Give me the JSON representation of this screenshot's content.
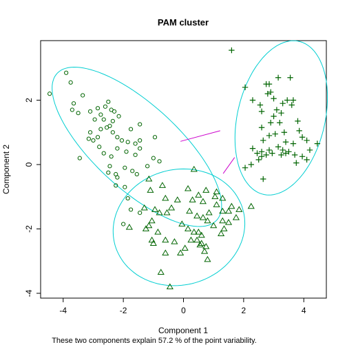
{
  "chart_data": {
    "type": "scatter",
    "title": "PAM cluster",
    "xlabel": "Component 1",
    "ylabel": "Component 2",
    "caption": "These two components explain 57.2 % of the point variability.",
    "xlim": [
      -4.75,
      4.75
    ],
    "ylim": [
      -4.15,
      3.85
    ],
    "x_ticks": [
      -4,
      -2,
      0,
      2,
      4
    ],
    "y_ticks": [
      -4,
      -2,
      0,
      2
    ],
    "grid": false,
    "legend": "none",
    "colors": {
      "points": "#006400",
      "ellipses": "#00CED1",
      "links": "#CC00CC",
      "axes": "#000000"
    },
    "series": [
      {
        "marker": "circle",
        "points": [
          [
            -3.9,
            2.85
          ],
          [
            -4.45,
            2.2
          ],
          [
            -3.75,
            2.55
          ],
          [
            -3.35,
            2.15
          ],
          [
            -3.65,
            1.9
          ],
          [
            -3.7,
            1.7
          ],
          [
            -3.5,
            1.6
          ],
          [
            -3.1,
            1.65
          ],
          [
            -2.85,
            1.75
          ],
          [
            -2.75,
            1.55
          ],
          [
            -2.6,
            1.8
          ],
          [
            -2.5,
            1.95
          ],
          [
            -2.4,
            1.7
          ],
          [
            -2.3,
            1.65
          ],
          [
            -2.65,
            1.4
          ],
          [
            -2.95,
            1.4
          ],
          [
            -2.75,
            1.1
          ],
          [
            -3.15,
            0.8
          ],
          [
            -3.0,
            0.75
          ],
          [
            -2.85,
            0.85
          ],
          [
            -2.45,
            1.2
          ],
          [
            -2.35,
            1.0
          ],
          [
            -2.2,
            0.85
          ],
          [
            -2.05,
            0.75
          ],
          [
            -1.85,
            0.7
          ],
          [
            -1.6,
            0.65
          ],
          [
            -1.45,
            0.75
          ],
          [
            -1.45,
            0.5
          ],
          [
            -1.6,
            0.3
          ],
          [
            -1.9,
            0.4
          ],
          [
            -2.2,
            0.5
          ],
          [
            -2.4,
            0.25
          ],
          [
            -2.65,
            0.35
          ],
          [
            -2.8,
            0.55
          ],
          [
            -3.45,
            0.2
          ],
          [
            -2.45,
            -0.05
          ],
          [
            -2.5,
            -0.25
          ],
          [
            -2.25,
            -0.3
          ],
          [
            -1.95,
            -0.1
          ],
          [
            -1.7,
            -0.2
          ],
          [
            -1.2,
            -0.05
          ],
          [
            -1.0,
            0.2
          ],
          [
            -0.8,
            0.1
          ],
          [
            -0.95,
            0.85
          ],
          [
            -1.45,
            1.25
          ],
          [
            -1.75,
            1.1
          ],
          [
            -2.15,
            1.5
          ],
          [
            -2.35,
            1.35
          ],
          [
            -2.55,
            1.15
          ],
          [
            -3.1,
            1.0
          ],
          [
            -1.55,
            -0.3
          ],
          [
            -2.2,
            -0.4
          ],
          [
            -2.25,
            -0.65
          ],
          [
            -1.95,
            -0.7
          ],
          [
            -1.85,
            -1.05
          ],
          [
            -1.75,
            -1.4
          ],
          [
            -1.45,
            -1.5
          ],
          [
            -2.0,
            -1.85
          ]
        ]
      },
      {
        "marker": "triangle",
        "points": [
          [
            0.75,
            -0.8
          ],
          [
            1.05,
            -1.0
          ],
          [
            1.3,
            -1.05
          ],
          [
            1.1,
            -1.25
          ],
          [
            1.3,
            -1.45
          ],
          [
            1.5,
            -1.45
          ],
          [
            1.6,
            -1.3
          ],
          [
            1.85,
            -1.4
          ],
          [
            2.25,
            -1.3
          ],
          [
            1.75,
            -1.65
          ],
          [
            1.5,
            -1.8
          ],
          [
            1.35,
            -2.0
          ],
          [
            1.25,
            -2.15
          ],
          [
            1.0,
            -1.9
          ],
          [
            0.8,
            -1.75
          ],
          [
            0.65,
            -1.65
          ],
          [
            0.45,
            -1.6
          ],
          [
            0.2,
            -1.45
          ],
          [
            -0.2,
            -1.1
          ],
          [
            -0.6,
            -1.05
          ],
          [
            -0.4,
            -1.35
          ],
          [
            -0.55,
            -1.5
          ],
          [
            -0.8,
            -1.5
          ],
          [
            -0.95,
            -1.4
          ],
          [
            -1.3,
            -1.35
          ],
          [
            -1.05,
            -1.75
          ],
          [
            -1.15,
            -1.9
          ],
          [
            -1.25,
            -2.0
          ],
          [
            -1.05,
            -2.35
          ],
          [
            -0.85,
            -2.1
          ],
          [
            -0.6,
            -2.35
          ],
          [
            -0.3,
            -2.4
          ],
          [
            -0.05,
            -1.85
          ],
          [
            0.15,
            -2.0
          ],
          [
            0.35,
            -2.1
          ],
          [
            0.5,
            -2.1
          ],
          [
            0.6,
            -2.2
          ],
          [
            0.45,
            -2.35
          ],
          [
            0.55,
            -2.5
          ],
          [
            0.7,
            -2.7
          ],
          [
            0.8,
            -2.95
          ],
          [
            0.6,
            -2.45
          ],
          [
            0.25,
            -2.35
          ],
          [
            -0.6,
            -2.75
          ],
          [
            -1.8,
            -1.95
          ],
          [
            -1.1,
            -0.8
          ],
          [
            -1.15,
            -0.45
          ],
          [
            -0.7,
            -0.65
          ],
          [
            0.15,
            -0.75
          ],
          [
            0.35,
            -0.15
          ],
          [
            1.1,
            -0.85
          ],
          [
            0.85,
            -1.5
          ],
          [
            1.3,
            -1.75
          ],
          [
            0.05,
            -2.6
          ],
          [
            -0.1,
            -2.75
          ],
          [
            -0.75,
            -3.35
          ],
          [
            -0.45,
            -3.8
          ],
          [
            0.75,
            -2.55
          ],
          [
            0.65,
            -1.15
          ],
          [
            0.5,
            -0.95
          ],
          [
            0.3,
            -1.1
          ],
          [
            -1.0,
            -2.45
          ]
        ]
      },
      {
        "marker": "plus",
        "points": [
          [
            1.6,
            3.55
          ],
          [
            2.05,
            2.4
          ],
          [
            2.3,
            2.0
          ],
          [
            2.55,
            1.85
          ],
          [
            2.6,
            1.65
          ],
          [
            2.75,
            2.5
          ],
          [
            2.85,
            2.5
          ],
          [
            2.9,
            2.25
          ],
          [
            3.0,
            2.05
          ],
          [
            3.1,
            1.7
          ],
          [
            3.25,
            1.6
          ],
          [
            3.45,
            2.0
          ],
          [
            3.55,
            2.7
          ],
          [
            3.65,
            2.0
          ],
          [
            3.15,
            2.7
          ],
          [
            2.8,
            2.2
          ],
          [
            3.0,
            1.5
          ],
          [
            3.3,
            1.9
          ],
          [
            2.6,
            1.15
          ],
          [
            2.65,
            0.75
          ],
          [
            2.3,
            0.5
          ],
          [
            2.45,
            0.35
          ],
          [
            2.6,
            0.4
          ],
          [
            2.85,
            0.9
          ],
          [
            3.05,
            0.95
          ],
          [
            3.2,
            1.3
          ],
          [
            3.35,
            1.0
          ],
          [
            3.4,
            0.7
          ],
          [
            3.65,
            0.65
          ],
          [
            3.85,
            1.05
          ],
          [
            3.8,
            1.35
          ],
          [
            3.95,
            0.85
          ],
          [
            4.1,
            0.75
          ],
          [
            4.45,
            0.65
          ],
          [
            4.2,
            0.45
          ],
          [
            4.1,
            0.15
          ],
          [
            3.95,
            0.25
          ],
          [
            3.75,
            0.05
          ],
          [
            3.5,
            0.4
          ],
          [
            3.3,
            0.45
          ],
          [
            3.15,
            0.55
          ],
          [
            2.85,
            0.45
          ],
          [
            2.95,
            0.35
          ],
          [
            2.75,
            0.3
          ],
          [
            2.6,
            0.25
          ],
          [
            2.5,
            0.15
          ],
          [
            2.25,
            0.0
          ],
          [
            2.05,
            -0.1
          ],
          [
            2.65,
            -0.45
          ],
          [
            3.4,
            0.35
          ],
          [
            2.9,
            1.3
          ],
          [
            3.6,
            1.85
          ],
          [
            3.25,
            0.3
          ],
          [
            3.7,
            0.3
          ]
        ]
      }
    ],
    "ellipses": [
      {
        "center": [
          -1.55,
          0.55
        ],
        "semi_axes": [
          3.5,
          1.35
        ],
        "angle_deg": -40
      },
      {
        "center": [
          -0.15,
          -1.95
        ],
        "semi_axes": [
          2.2,
          1.8
        ],
        "angle_deg": 10
      },
      {
        "center": [
          3.25,
          1.45
        ],
        "semi_axes": [
          2.45,
          1.45
        ],
        "angle_deg": 75
      }
    ],
    "links": [
      [
        [
          -0.1,
          0.72
        ],
        [
          1.22,
          1.05
        ]
      ],
      [
        [
          1.32,
          -0.28
        ],
        [
          1.7,
          0.22
        ]
      ]
    ]
  }
}
